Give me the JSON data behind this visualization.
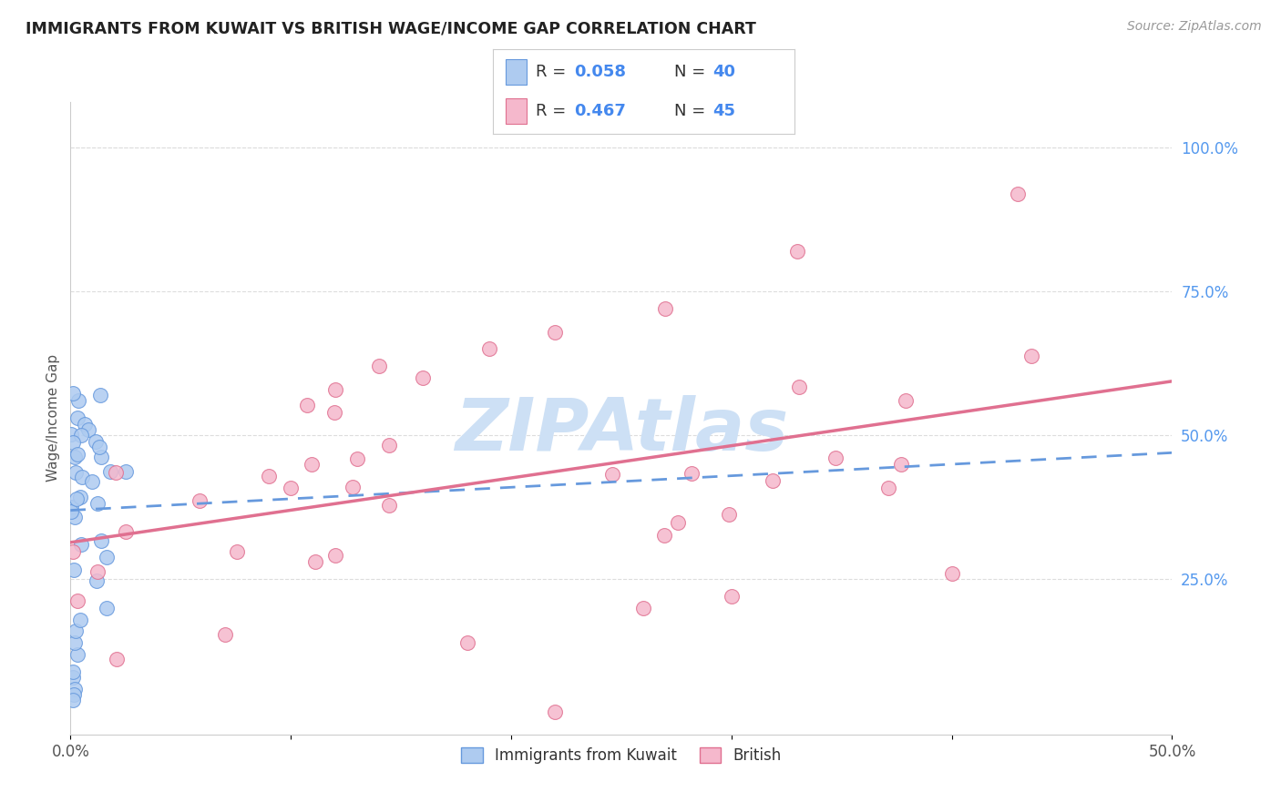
{
  "title": "IMMIGRANTS FROM KUWAIT VS BRITISH WAGE/INCOME GAP CORRELATION CHART",
  "source": "Source: ZipAtlas.com",
  "ylabel": "Wage/Income Gap",
  "xlim": [
    0.0,
    0.5
  ],
  "ylim": [
    -0.02,
    1.08
  ],
  "xtick_vals": [
    0.0,
    0.1,
    0.2,
    0.3,
    0.4,
    0.5
  ],
  "xtick_labels": [
    "0.0%",
    "",
    "",
    "",
    "",
    "50.0%"
  ],
  "yticks_right": [
    0.25,
    0.5,
    0.75,
    1.0
  ],
  "ytick_labels_right": [
    "25.0%",
    "50.0%",
    "75.0%",
    "100.0%"
  ],
  "series1_name": "Immigrants from Kuwait",
  "series1_R": 0.058,
  "series1_N": 40,
  "series1_color": "#aecbf0",
  "series1_edge_color": "#6699dd",
  "series2_name": "British",
  "series2_R": 0.467,
  "series2_N": 45,
  "series2_color": "#f5b8cc",
  "series2_edge_color": "#e07090",
  "watermark": "ZIPAtlas",
  "watermark_color": "#cde0f5",
  "background_color": "#ffffff",
  "grid_color": "#dddddd",
  "title_color": "#222222",
  "source_color": "#999999",
  "axis_label_color": "#555555",
  "right_tick_color": "#5599ee",
  "line1_color": "#6699dd",
  "line2_color": "#e07090"
}
